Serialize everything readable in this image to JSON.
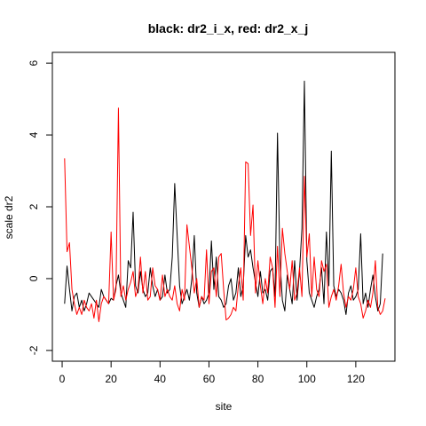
{
  "chart_data": {
    "type": "line",
    "title": "black: dr2_i_x, red: dr2_x_j",
    "xlabel": "site",
    "ylabel": "scale dr2",
    "xlim": [
      -4,
      136
    ],
    "ylim": [
      -2.3,
      6.3
    ],
    "xticks": [
      0,
      20,
      40,
      60,
      80,
      100,
      120
    ],
    "yticks": [
      -2,
      0,
      2,
      4,
      6
    ],
    "grid": false,
    "series": [
      {
        "color": "#000000",
        "values": [
          -0.7,
          0.35,
          -0.3,
          -0.9,
          -0.5,
          -0.4,
          -0.8,
          -0.6,
          -0.9,
          -0.7,
          -0.4,
          -0.5,
          -0.6,
          -0.7,
          -0.8,
          -0.3,
          -0.5,
          -0.6,
          -0.7,
          -0.55,
          -0.6,
          -0.2,
          0.1,
          -0.4,
          -0.6,
          -0.8,
          0.5,
          0.3,
          1.85,
          -0.2,
          -0.4,
          0.2,
          -0.3,
          -0.5,
          -0.4,
          0.3,
          -0.2,
          -0.5,
          -0.3,
          -0.6,
          -0.5,
          0.1,
          -0.4,
          -0.3,
          0.6,
          2.65,
          1.2,
          -0.2,
          -0.7,
          -0.5,
          -0.3,
          -0.6,
          0.0,
          1.2,
          -0.4,
          -0.8,
          -0.5,
          -0.7,
          -0.6,
          -0.4,
          1.05,
          -0.3,
          0.6,
          -0.5,
          -0.6,
          -0.8,
          -0.7,
          -0.2,
          0.0,
          -0.6,
          -0.4,
          0.3,
          -0.5,
          -0.2,
          1.2,
          0.6,
          0.8,
          0.3,
          -0.1,
          -0.5,
          0.2,
          -0.4,
          -0.3,
          -0.6,
          0.2,
          0.3,
          -0.5,
          4.05,
          0.5,
          -0.6,
          -0.9,
          0.1,
          -0.3,
          -0.7,
          0.5,
          -0.6,
          0.2,
          1.4,
          5.5,
          0.5,
          -0.4,
          -0.6,
          -0.8,
          -0.5,
          -0.3,
          0.3,
          -0.7,
          1.3,
          -0.2,
          3.55,
          -0.2,
          -0.5,
          -0.3,
          -0.4,
          -0.6,
          -1.0,
          -0.4,
          -0.2,
          -0.6,
          -0.5,
          -0.3,
          1.25,
          -0.7,
          -0.4,
          -0.8,
          -0.3,
          0.1,
          -0.5,
          -0.9,
          -0.7,
          0.7
        ]
      },
      {
        "color": "#ff0000",
        "values": [
          3.35,
          0.75,
          1.0,
          -0.3,
          -0.7,
          -1.0,
          -0.8,
          -1.0,
          -0.6,
          -0.8,
          -0.9,
          -0.7,
          -1.1,
          -0.6,
          -1.2,
          -0.7,
          -0.5,
          -0.6,
          -0.7,
          1.3,
          -0.6,
          -0.3,
          4.75,
          -0.5,
          -0.2,
          -0.6,
          -0.3,
          -0.1,
          0.2,
          -0.5,
          -0.3,
          0.6,
          -0.4,
          0.2,
          -0.6,
          -0.5,
          0.3,
          -0.2,
          -0.3,
          -0.6,
          0.1,
          -0.5,
          -0.3,
          -0.5,
          -0.6,
          -0.2,
          -0.7,
          -0.9,
          -0.3,
          -0.6,
          1.5,
          0.9,
          0.3,
          -0.4,
          0.0,
          -0.8,
          -0.5,
          -0.6,
          0.8,
          -0.7,
          0.2,
          0.3,
          -0.5,
          0.6,
          0.7,
          -0.3,
          -1.15,
          -1.1,
          -1.0,
          -0.8,
          -0.9,
          -0.2,
          0.3,
          -0.6,
          3.25,
          3.2,
          1.2,
          2.05,
          -0.4,
          0.5,
          -0.2,
          -0.7,
          0.0,
          -0.4,
          0.6,
          0.3,
          -0.8,
          0.9,
          -0.5,
          1.4,
          0.7,
          0.2,
          -0.3,
          0.5,
          -0.6,
          -0.4,
          0.3,
          -0.5,
          2.85,
          0.6,
          1.25,
          -0.5,
          0.6,
          -0.3,
          -0.5,
          0.5,
          0.2,
          0.4,
          -0.8,
          -0.5,
          -0.3,
          -0.6,
          -0.2,
          0.4,
          -0.4,
          -0.8,
          -0.5,
          -0.6,
          -0.3,
          0.3,
          -0.5,
          -0.7,
          -1.1,
          -0.9,
          -0.6,
          -0.8,
          -0.4,
          0.5,
          -0.8,
          -1.0,
          -0.9,
          -0.55
        ]
      }
    ]
  }
}
